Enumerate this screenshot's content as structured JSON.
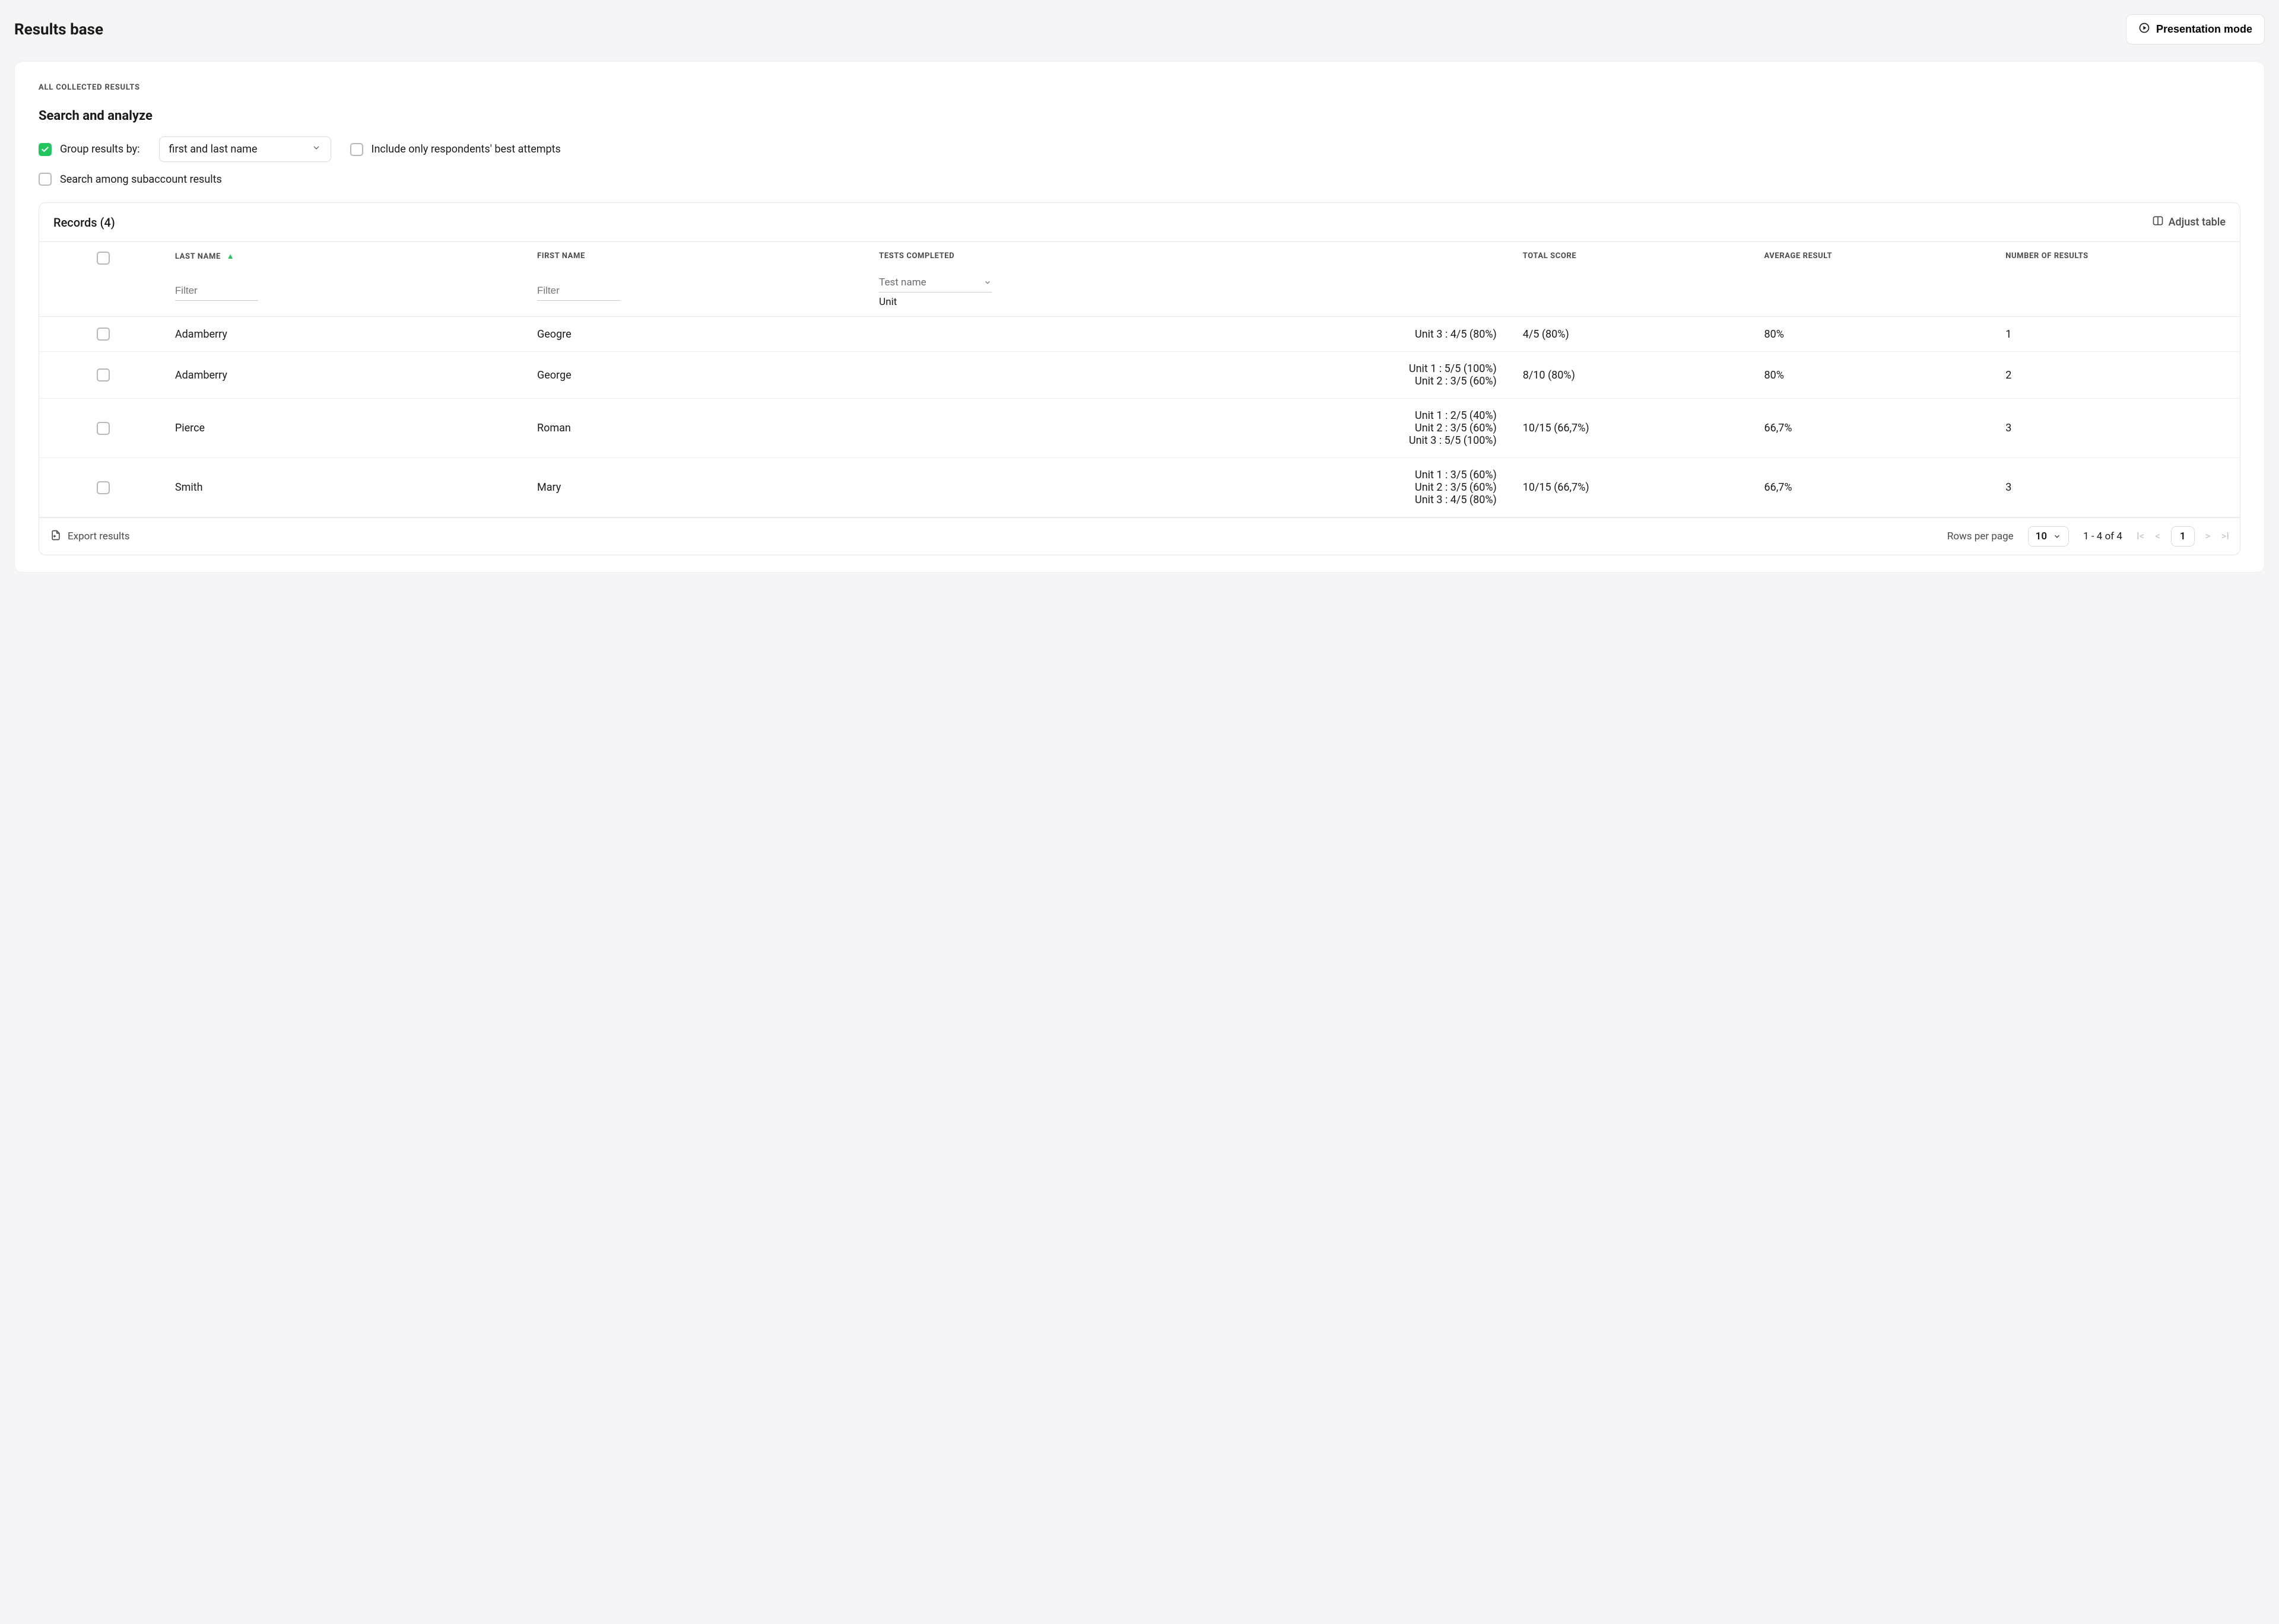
{
  "page_title": "Results base",
  "presentation_btn": "Presentation mode",
  "eyebrow": "ALL COLLECTED RESULTS",
  "section_title": "Search and analyze",
  "group_by": {
    "checked": true,
    "label": "Group results by:",
    "selected": "first and last name"
  },
  "best_attempts": {
    "checked": false,
    "label": "Include only respondents' best attempts"
  },
  "subaccount": {
    "checked": false,
    "label": "Search among subaccount results"
  },
  "records_label": "Records (4)",
  "adjust_label": "Adjust table",
  "columns": {
    "last_name": "LAST NAME",
    "first_name": "FIRST NAME",
    "tests_completed": "TESTS COMPLETED",
    "total_score": "TOTAL SCORE",
    "average_result": "AVERAGE RESULT",
    "number_of_results": "NUMBER OF RESULTS"
  },
  "filters": {
    "placeholder": "Filter",
    "tests_dropdown_placeholder": "Test name",
    "tests_value": "Unit"
  },
  "rows": [
    {
      "last_name": "Adamberry",
      "first_name": "Geogre",
      "tests": [
        "Unit 3 : 4/5 (80%)"
      ],
      "total_score": "4/5 (80%)",
      "average_result": "80%",
      "num_results": "1"
    },
    {
      "last_name": "Adamberry",
      "first_name": "George",
      "tests": [
        "Unit 1 : 5/5 (100%)",
        "Unit 2 : 3/5 (60%)"
      ],
      "total_score": "8/10 (80%)",
      "average_result": "80%",
      "num_results": "2"
    },
    {
      "last_name": "Pierce",
      "first_name": "Roman",
      "tests": [
        "Unit 1 : 2/5 (40%)",
        "Unit 2 : 3/5 (60%)",
        "Unit 3 : 5/5 (100%)"
      ],
      "total_score": "10/15 (66,7%)",
      "average_result": "66,7%",
      "num_results": "3"
    },
    {
      "last_name": "Smith",
      "first_name": "Mary",
      "tests": [
        "Unit 1 : 3/5 (60%)",
        "Unit 2 : 3/5 (60%)",
        "Unit 3 : 4/5 (80%)"
      ],
      "total_score": "10/15 (66,7%)",
      "average_result": "66,7%",
      "num_results": "3"
    }
  ],
  "footer": {
    "export_label": "Export results",
    "rows_per_page_label": "Rows per page",
    "rows_per_page_value": "10",
    "range_label": "1 - 4 of 4",
    "current_page": "1"
  },
  "colors": {
    "accent_green": "#22c55e",
    "border": "#e5e5ea",
    "text_muted": "#4a4a4f"
  }
}
